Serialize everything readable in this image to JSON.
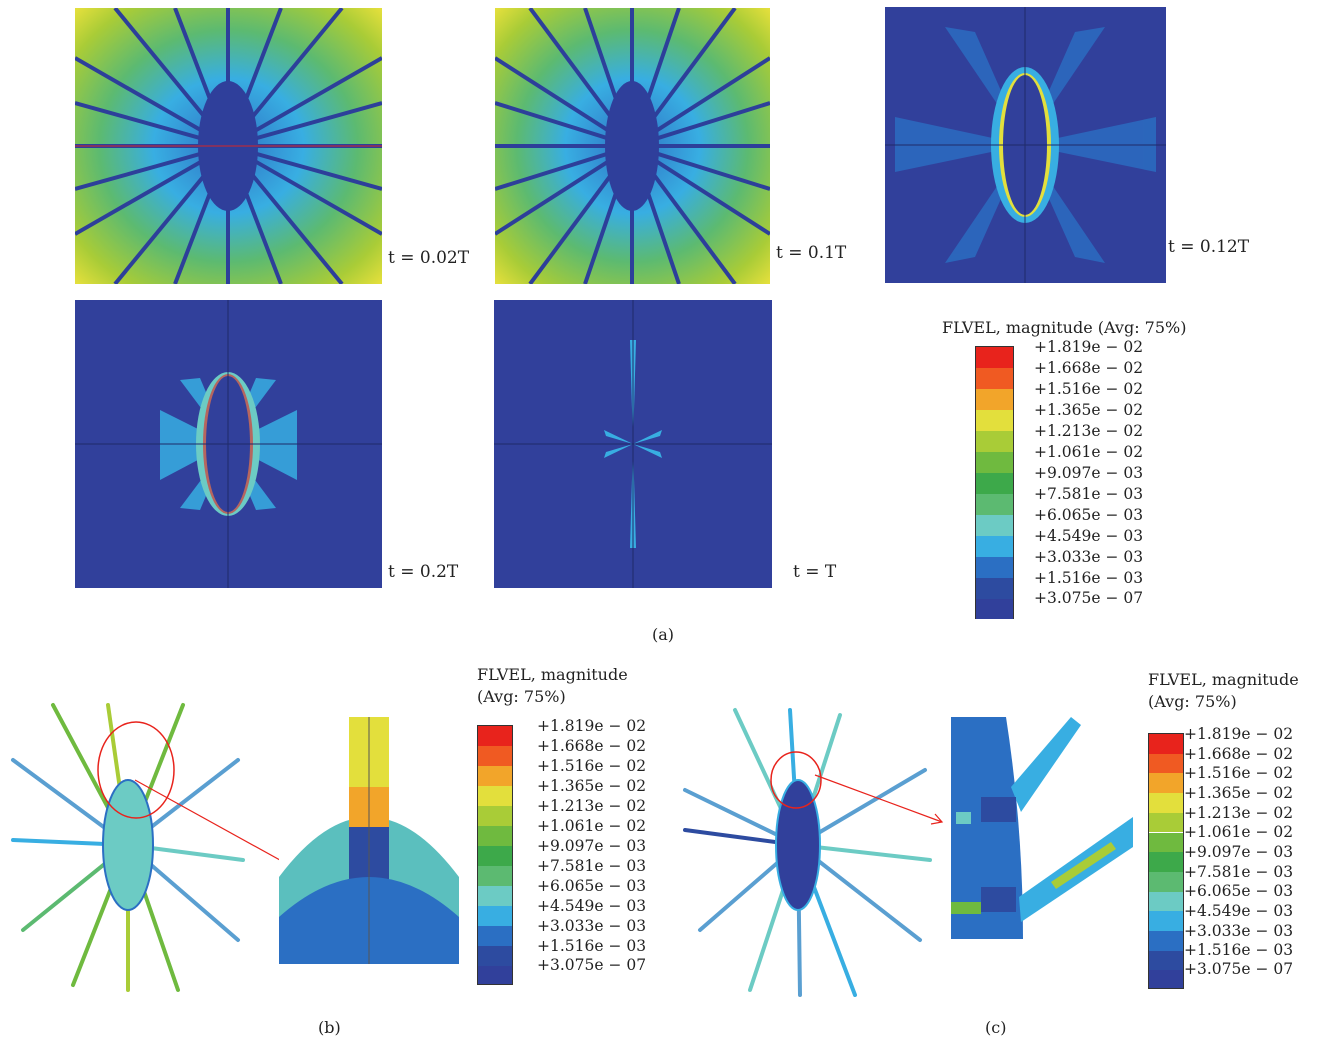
{
  "panels": [
    {
      "time_label": "t = 0.02T"
    },
    {
      "time_label": "t = 0.1T"
    },
    {
      "time_label": "t = 0.12T"
    },
    {
      "time_label": "t = 0.2T"
    },
    {
      "time_label": "t = T"
    }
  ],
  "legend": {
    "title_line1": "FLVEL, magnitude",
    "title_line2": "(Avg: 75%)",
    "title_single": "FLVEL, magnitude (Avg: 75%)",
    "values": [
      "+1.819e − 02",
      "+1.668e − 02",
      "+1.516e − 02",
      "+1.365e − 02",
      "+1.213e − 02",
      "+1.061e − 02",
      "+9.097e − 03",
      "+7.581e − 03",
      "+6.065e − 03",
      "+4.549e − 03",
      "+3.033e − 03",
      "+1.516e − 03",
      "+3.075e − 07"
    ],
    "colors": [
      "#e8231c",
      "#f05a22",
      "#f2a52a",
      "#e3df3c",
      "#a9cc37",
      "#6fba3f",
      "#3da94a",
      "#5cba71",
      "#6ccbc4",
      "#38aee2",
      "#2b6fc3",
      "#2d4ba0",
      "#31409b"
    ]
  },
  "captions": {
    "a": "(a)",
    "b": "(b)",
    "c": "(c)"
  },
  "colors": {
    "field_low": "#2f3f9b",
    "field_mid": "#38aee2",
    "field_green": "#6fba3f",
    "field_red": "#e8231c"
  }
}
